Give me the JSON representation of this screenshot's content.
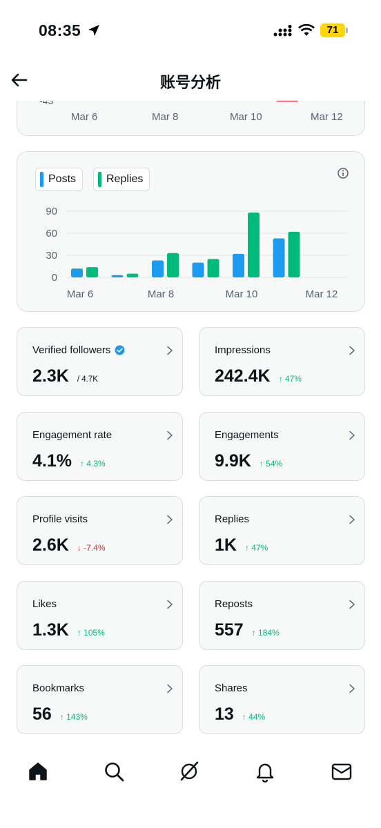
{
  "status_bar": {
    "time": "08:35",
    "battery": "71"
  },
  "header": {
    "title": "账号分析"
  },
  "top_chart": {
    "neg_tick": "-43",
    "x_ticks": [
      "Mar 6",
      "Mar 8",
      "Mar 10",
      "Mar 12"
    ]
  },
  "chart_data": {
    "type": "bar",
    "categories": [
      "Mar 6",
      "Mar 7",
      "Mar 8",
      "Mar 9",
      "Mar 10",
      "Mar 11"
    ],
    "x_tick_labels": [
      "Mar 6",
      "Mar 8",
      "Mar 10",
      "Mar 12"
    ],
    "series": [
      {
        "name": "Posts",
        "color": "#1d9bf0",
        "values": [
          12,
          3,
          23,
          20,
          32,
          53
        ]
      },
      {
        "name": "Replies",
        "color": "#00ba7c",
        "values": [
          14,
          5,
          33,
          25,
          88,
          62
        ]
      }
    ],
    "y_ticks": [
      0,
      30,
      60,
      90
    ],
    "ylim": [
      0,
      95
    ],
    "grid": true,
    "legend": "top-left"
  },
  "metrics": [
    {
      "label": "Verified followers",
      "value": "2.3K",
      "sub": "/ 4.7K",
      "verified": true
    },
    {
      "label": "Impressions",
      "value": "242.4K",
      "change": "↑ 47%",
      "dir": "up"
    },
    {
      "label": "Engagement rate",
      "value": "4.1%",
      "change": "↑ 4.3%",
      "dir": "up"
    },
    {
      "label": "Engagements",
      "value": "9.9K",
      "change": "↑ 54%",
      "dir": "up"
    },
    {
      "label": "Profile visits",
      "value": "2.6K",
      "change": "↓ -7.4%",
      "dir": "down"
    },
    {
      "label": "Replies",
      "value": "1K",
      "change": "↑ 47%",
      "dir": "up"
    },
    {
      "label": "Likes",
      "value": "1.3K",
      "change": "↑ 105%",
      "dir": "up"
    },
    {
      "label": "Reposts",
      "value": "557",
      "change": "↑ 184%",
      "dir": "up"
    },
    {
      "label": "Bookmarks",
      "value": "56",
      "change": "↑ 143%",
      "dir": "up"
    },
    {
      "label": "Shares",
      "value": "13",
      "change": "↑ 44%",
      "dir": "up"
    }
  ],
  "bottom_nav": [
    "home-icon",
    "search-icon",
    "grok-icon",
    "bell-icon",
    "mail-icon"
  ]
}
